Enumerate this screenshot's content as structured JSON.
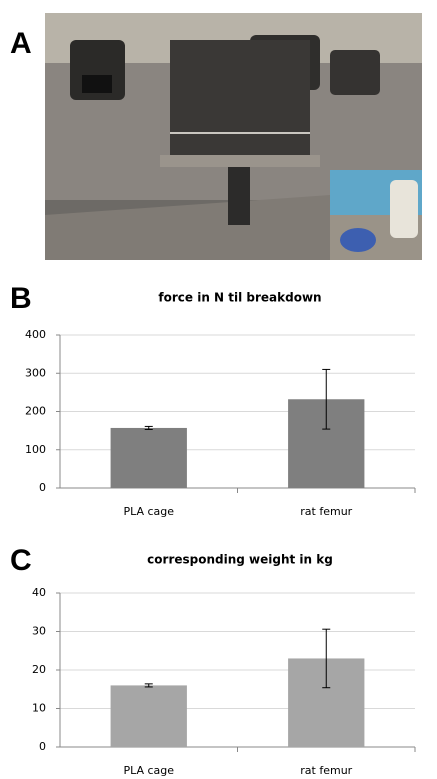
{
  "panel_labels": [
    "A",
    "B",
    "C"
  ],
  "chart_data": [
    {
      "type": "bar",
      "title": "force in N til breakdown",
      "categories": [
        "PLA cage",
        "rat femur"
      ],
      "values": [
        157,
        232
      ],
      "errors": [
        4,
        78
      ],
      "color": "#7f7f7f",
      "ylim": [
        0,
        400
      ],
      "yticks": [
        0,
        100,
        200,
        300,
        400
      ],
      "grid": true
    },
    {
      "type": "bar",
      "title": "corresponding weight in kg",
      "categories": [
        "PLA cage",
        "rat femur"
      ],
      "values": [
        16,
        23
      ],
      "errors": [
        0.4,
        7.6
      ],
      "color": "#a6a6a6",
      "ylim": [
        0,
        40
      ],
      "yticks": [
        0,
        10,
        20,
        30,
        40
      ],
      "grid": true
    }
  ]
}
